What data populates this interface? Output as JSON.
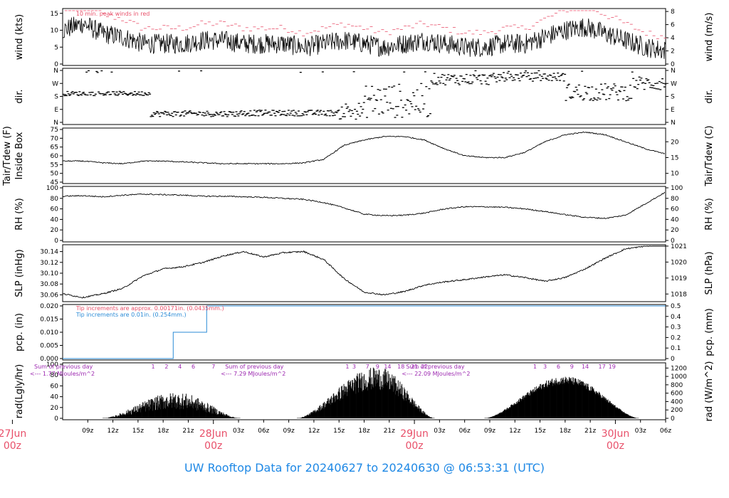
{
  "colors": {
    "red": "#e8506a",
    "blue": "#2b8bd6",
    "purple": "#9c27b0",
    "black": "#000000"
  },
  "footer": "UW Rooftop Data for 20240627  to  20240630 @ 06:53:31  (UTC)",
  "chart_data": [
    {
      "type": "line",
      "panel": "wind",
      "ylabel": "wind (kts)",
      "ylabel_right": "wind (m/s)",
      "ylim": [
        0,
        16
      ],
      "yticks": [
        "0",
        "5",
        "10",
        "15"
      ],
      "yticks_right": [
        "0",
        "2",
        "4",
        "6",
        "8"
      ],
      "annotation": "10 min. peak winds in red",
      "series": [
        {
          "x": [
            0,
            6,
            12,
            18,
            24,
            30,
            36,
            42,
            48,
            54,
            60,
            66,
            72,
            78,
            84,
            90,
            96,
            102,
            108,
            114,
            120,
            126,
            132,
            138,
            144,
            150,
            156,
            162,
            168,
            174,
            180
          ],
          "values": [
            10,
            12,
            9,
            8,
            6,
            6,
            6,
            7,
            7,
            6,
            6,
            6,
            5,
            6,
            7,
            6,
            5,
            6,
            7,
            6,
            5,
            5,
            6,
            6,
            8,
            10,
            11,
            9,
            7,
            5,
            4
          ]
        }
      ]
    },
    {
      "type": "scatter",
      "panel": "dir.",
      "ylabel": "dir.",
      "ylabel_right": "dir.",
      "yticks": [
        "N",
        "W",
        "S",
        "E",
        "N"
      ],
      "ylim": [
        0,
        360
      ]
    },
    {
      "type": "line",
      "panel": "temperature",
      "ylabel": "Tair/Tdew (F)",
      "ylabel2": "Inside Box",
      "ylabel_right": "Tair/Tdew (C)",
      "ylim": [
        45,
        75
      ],
      "yticks": [
        "45",
        "50",
        "55",
        "60",
        "65",
        "70",
        "75"
      ],
      "yticks_right": [
        "10",
        "15",
        "20"
      ],
      "series": [
        {
          "x": [
            0,
            6,
            12,
            18,
            24,
            30,
            36,
            42,
            48,
            54,
            60,
            66,
            72,
            78,
            84,
            90,
            96,
            102,
            108,
            114,
            120,
            126,
            132,
            138,
            144,
            150,
            156,
            162,
            168,
            174,
            180
          ],
          "values": [
            57,
            57,
            56,
            55.5,
            57,
            57,
            56.5,
            56,
            55.5,
            55.5,
            55.5,
            55.5,
            56,
            58,
            66,
            69,
            71,
            71,
            69,
            64,
            60,
            59,
            59,
            62,
            68,
            72,
            73.5,
            72,
            68,
            64,
            61
          ]
        }
      ]
    },
    {
      "type": "line",
      "panel": "rh",
      "ylabel": "RH (%)",
      "ylabel_right": "RH (%)",
      "ylim": [
        0,
        100
      ],
      "yticks": [
        "0",
        "20",
        "40",
        "60",
        "80",
        "100"
      ],
      "series": [
        {
          "x": [
            0,
            6,
            12,
            18,
            24,
            30,
            36,
            42,
            48,
            54,
            60,
            66,
            72,
            78,
            84,
            90,
            96,
            102,
            108,
            114,
            120,
            126,
            132,
            138,
            144,
            150,
            156,
            162,
            168,
            174,
            180
          ],
          "values": [
            84,
            85,
            83,
            86,
            88,
            87,
            86,
            84,
            84,
            83,
            82,
            80,
            78,
            72,
            62,
            50,
            47,
            48,
            52,
            60,
            64,
            64,
            63,
            60,
            55,
            49,
            44,
            42,
            48,
            70,
            92
          ]
        }
      ]
    },
    {
      "type": "line",
      "panel": "slp",
      "ylabel": "SLP (inHg)",
      "ylabel_right": "SLP (hPa)",
      "ylim": [
        30.05,
        30.15
      ],
      "yticks": [
        "30.06",
        "30.08",
        "30.10",
        "30.12",
        "30.14"
      ],
      "yticks_right": [
        "1018",
        "1019",
        "1020",
        "1021"
      ],
      "series": [
        {
          "x": [
            0,
            6,
            12,
            18,
            24,
            30,
            36,
            42,
            48,
            54,
            60,
            66,
            72,
            78,
            84,
            90,
            96,
            102,
            108,
            114,
            120,
            126,
            132,
            138,
            144,
            150,
            156,
            162,
            168,
            174,
            180
          ],
          "values": [
            30.062,
            30.055,
            30.062,
            30.072,
            30.095,
            30.108,
            30.112,
            30.12,
            30.132,
            30.14,
            30.13,
            30.138,
            30.14,
            30.125,
            30.09,
            30.065,
            30.06,
            30.066,
            30.078,
            30.084,
            30.088,
            30.093,
            30.097,
            30.092,
            30.085,
            30.092,
            30.108,
            30.128,
            30.145,
            30.15,
            30.152
          ]
        }
      ]
    },
    {
      "type": "line",
      "panel": "pcp",
      "ylabel": "pcp. (in)",
      "ylabel_right": "pcp. (mm)",
      "ylim": [
        0,
        0.02
      ],
      "yticks": [
        "0.000",
        "0.005",
        "0.010",
        "0.015",
        "0.020"
      ],
      "yticks_right": [
        "0",
        "0.1",
        "0.2",
        "0.3",
        "0.4",
        "0.5"
      ],
      "annotation_red": "Tip increments are approx. 0.00171in. (0.0435mm.)",
      "annotation_blue": "Tip increments are 0.01in. (0.254mm.)",
      "series": [
        {
          "x": [
            0,
            33,
            33,
            43,
            43,
            180
          ],
          "values": [
            0,
            0,
            0.01,
            0.01,
            0.02,
            0.02
          ]
        }
      ]
    },
    {
      "type": "bar",
      "panel": "rad",
      "ylabel": "rad(Lgly/hr)",
      "ylabel_right": "rad (W/m^2)",
      "ylim": [
        0,
        100
      ],
      "yticks": [
        "0",
        "20",
        "40",
        "60",
        "80",
        "100"
      ],
      "yticks_right": [
        "0",
        "200",
        "400",
        "600",
        "800",
        "1000",
        "1200"
      ],
      "hour_labels": [
        {
          "x": 27,
          "t": "1"
        },
        {
          "x": 31,
          "t": "2"
        },
        {
          "x": 35,
          "t": "4"
        },
        {
          "x": 39,
          "t": "6"
        },
        {
          "x": 45,
          "t": "7"
        },
        {
          "x": 85,
          "t": "1"
        },
        {
          "x": 87,
          "t": "3"
        },
        {
          "x": 91,
          "t": "7"
        },
        {
          "x": 94,
          "t": "9"
        },
        {
          "x": 97,
          "t": "14"
        },
        {
          "x": 101,
          "t": "18"
        },
        {
          "x": 105,
          "t": "21"
        },
        {
          "x": 108,
          "t": "22"
        },
        {
          "x": 141,
          "t": "1"
        },
        {
          "x": 144,
          "t": "3"
        },
        {
          "x": 148,
          "t": "6"
        },
        {
          "x": 152,
          "t": "9"
        },
        {
          "x": 156,
          "t": "14"
        },
        {
          "x": 161,
          "t": "17"
        },
        {
          "x": 164,
          "t": "19"
        }
      ],
      "day_notes": [
        {
          "x": 0,
          "line1": "Sum of previous day",
          "line2": "<--- 1.77 MJoules/m^2"
        },
        {
          "x": 57,
          "line1": "Sum of previous day",
          "line2": "<--- 7.29 MJoules/m^2"
        },
        {
          "x": 111,
          "line1": "Sum of previous day",
          "line2": "<--- 22.09 MJoules/m^2"
        }
      ],
      "days": [
        {
          "start": 12,
          "peak_at": 34,
          "end": 53,
          "peak": 48
        },
        {
          "start": 70,
          "peak_at": 94,
          "end": 111,
          "peak": 95
        },
        {
          "start": 126,
          "peak_at": 150,
          "end": 172,
          "peak": 78
        }
      ]
    }
  ],
  "xaxis": {
    "x_unit": "hours since 06/27 06z",
    "ticks": [
      {
        "x": 3,
        "t": "09z"
      },
      {
        "x": 6,
        "t": "12z"
      },
      {
        "x": 9,
        "t": "15z"
      },
      {
        "x": 12,
        "t": "18z"
      },
      {
        "x": 15,
        "t": "21z"
      },
      {
        "x": 21,
        "t": "03z"
      },
      {
        "x": 24,
        "t": "06z"
      },
      {
        "x": 27,
        "t": "09z"
      },
      {
        "x": 30,
        "t": "12z"
      },
      {
        "x": 33,
        "t": "15z"
      },
      {
        "x": 36,
        "t": "18z"
      },
      {
        "x": 39,
        "t": "21z"
      },
      {
        "x": 45,
        "t": "03z"
      },
      {
        "x": 48,
        "t": "06z"
      },
      {
        "x": 51,
        "t": "09z"
      },
      {
        "x": 54,
        "t": "12z"
      },
      {
        "x": 57,
        "t": "15z"
      },
      {
        "x": 60,
        "t": "18z"
      },
      {
        "x": 63,
        "t": "21z"
      },
      {
        "x": 69,
        "t": "03z"
      },
      {
        "x": 72,
        "t": "06z"
      }
    ],
    "dates": [
      {
        "x": -6,
        "l1": "27Jun",
        "l2": "00z"
      },
      {
        "x": 18,
        "l1": "28Jun",
        "l2": "00z"
      },
      {
        "x": 42,
        "l1": "29Jun",
        "l2": "00z"
      },
      {
        "x": 66,
        "l1": "30Jun",
        "l2": "00z"
      }
    ]
  }
}
